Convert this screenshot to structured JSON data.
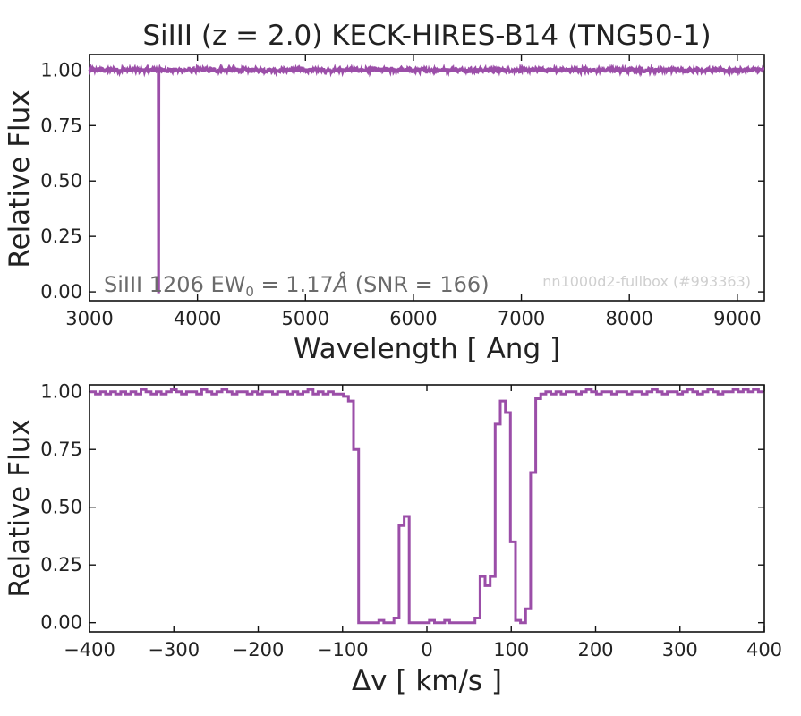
{
  "figure": {
    "title": "SiIII (z = 2.0) KECK-HIRES-B14 (TNG50-1)",
    "line_color": "#9b4ea8"
  },
  "chart_data": [
    {
      "type": "line",
      "title": "SiIII (z = 2.0) KECK-HIRES-B14 (TNG50-1)",
      "xlabel": "Wavelength [ Ang ]",
      "ylabel": "Relative Flux",
      "xlim": [
        3000,
        9250
      ],
      "ylim": [
        -0.04,
        1.07
      ],
      "xticks": [
        3000,
        4000,
        5000,
        6000,
        7000,
        8000,
        9000
      ],
      "yticks": [
        0.0,
        0.25,
        0.5,
        0.75,
        1.0
      ],
      "xtick_labels": [
        "3000",
        "4000",
        "5000",
        "6000",
        "7000",
        "8000",
        "9000"
      ],
      "ytick_labels": [
        "0.00",
        "0.25",
        "0.50",
        "0.75",
        "1.00"
      ],
      "grid": false,
      "annotation_left": {
        "ion": "SiIII 1206 EW",
        "subscript": "0",
        "value": " = 1.17",
        "unit": "Å",
        "snr": " (SNR = 166)"
      },
      "annotation_right": "nn1000d2-fullbox (#993363)",
      "series": [
        {
          "continuum": 1.0,
          "noise_amplitude": 0.01,
          "absorption_x": 3640,
          "absorption_min": 0.0,
          "points": [
            [
              3000,
              1.0
            ],
            [
              3636,
              1.0
            ],
            [
              3638,
              0.0
            ],
            [
              3642,
              0.0
            ],
            [
              3644,
              1.0
            ],
            [
              9250,
              1.0
            ]
          ]
        }
      ]
    },
    {
      "type": "line",
      "title": "",
      "xlabel": "Δv [ km/s ]",
      "ylabel": "Relative Flux",
      "xlim": [
        -400,
        400
      ],
      "ylim": [
        -0.04,
        1.03
      ],
      "xticks": [
        -400,
        -300,
        -200,
        -100,
        0,
        100,
        200,
        300,
        400
      ],
      "yticks": [
        0.0,
        0.25,
        0.5,
        0.75,
        1.0
      ],
      "xtick_labels": [
        "−400",
        "−300",
        "−200",
        "−100",
        "0",
        "100",
        "200",
        "300",
        "400"
      ],
      "ytick_labels": [
        "0.00",
        "0.25",
        "0.50",
        "0.75",
        "1.00"
      ],
      "grid": false,
      "series": [
        {
          "step": true,
          "points": [
            [
              -396,
              1.0
            ],
            [
              -390,
              0.99
            ],
            [
              -384,
              1.0
            ],
            [
              -378,
              0.99
            ],
            [
              -372,
              1.0
            ],
            [
              -366,
              0.99
            ],
            [
              -360,
              1.0
            ],
            [
              -354,
              0.99
            ],
            [
              -348,
              1.0
            ],
            [
              -342,
              0.99
            ],
            [
              -336,
              1.01
            ],
            [
              -330,
              1.0
            ],
            [
              -324,
              0.99
            ],
            [
              -318,
              1.0
            ],
            [
              -312,
              0.99
            ],
            [
              -306,
              1.0
            ],
            [
              -300,
              1.01
            ],
            [
              -294,
              1.0
            ],
            [
              -288,
              0.99
            ],
            [
              -282,
              1.0
            ],
            [
              -276,
              1.0
            ],
            [
              -270,
              0.99
            ],
            [
              -264,
              1.01
            ],
            [
              -258,
              1.0
            ],
            [
              -252,
              0.99
            ],
            [
              -246,
              1.0
            ],
            [
              -240,
              1.01
            ],
            [
              -234,
              1.0
            ],
            [
              -228,
              0.99
            ],
            [
              -222,
              1.0
            ],
            [
              -216,
              1.0
            ],
            [
              -210,
              0.99
            ],
            [
              -204,
              1.0
            ],
            [
              -198,
              0.99
            ],
            [
              -192,
              1.0
            ],
            [
              -186,
              1.0
            ],
            [
              -180,
              0.99
            ],
            [
              -174,
              1.0
            ],
            [
              -168,
              1.0
            ],
            [
              -162,
              0.99
            ],
            [
              -156,
              1.0
            ],
            [
              -150,
              0.99
            ],
            [
              -144,
              1.0
            ],
            [
              -138,
              1.01
            ],
            [
              -132,
              0.99
            ],
            [
              -126,
              1.0
            ],
            [
              -120,
              0.99
            ],
            [
              -114,
              1.0
            ],
            [
              -108,
              0.99
            ],
            [
              -102,
              0.99
            ],
            [
              -96,
              0.98
            ],
            [
              -90,
              0.96
            ],
            [
              -84,
              0.75
            ],
            [
              -78,
              0.0
            ],
            [
              -72,
              0.0
            ],
            [
              -66,
              0.0
            ],
            [
              -60,
              0.0
            ],
            [
              -54,
              0.01
            ],
            [
              -48,
              0.0
            ],
            [
              -42,
              0.0
            ],
            [
              -36,
              0.02
            ],
            [
              -30,
              0.42
            ],
            [
              -24,
              0.46
            ],
            [
              -18,
              0.0
            ],
            [
              -12,
              0.0
            ],
            [
              -6,
              0.0
            ],
            [
              0,
              0.0
            ],
            [
              6,
              0.01
            ],
            [
              12,
              0.0
            ],
            [
              18,
              0.0
            ],
            [
              24,
              0.01
            ],
            [
              30,
              0.0
            ],
            [
              36,
              0.0
            ],
            [
              42,
              0.0
            ],
            [
              48,
              0.0
            ],
            [
              54,
              0.0
            ],
            [
              60,
              0.02
            ],
            [
              66,
              0.2
            ],
            [
              72,
              0.16
            ],
            [
              78,
              0.2
            ],
            [
              84,
              0.86
            ],
            [
              90,
              0.96
            ],
            [
              96,
              0.91
            ],
            [
              102,
              0.35
            ],
            [
              108,
              0.01
            ],
            [
              114,
              0.0
            ],
            [
              120,
              0.06
            ],
            [
              126,
              0.65
            ],
            [
              132,
              0.97
            ],
            [
              138,
              0.99
            ],
            [
              144,
              1.0
            ],
            [
              150,
              0.99
            ],
            [
              156,
              1.0
            ],
            [
              162,
              0.99
            ],
            [
              168,
              1.0
            ],
            [
              174,
              1.0
            ],
            [
              180,
              0.99
            ],
            [
              186,
              1.0
            ],
            [
              192,
              1.01
            ],
            [
              198,
              1.0
            ],
            [
              204,
              0.99
            ],
            [
              210,
              1.0
            ],
            [
              216,
              1.0
            ],
            [
              222,
              0.99
            ],
            [
              228,
              1.0
            ],
            [
              234,
              1.0
            ],
            [
              240,
              0.99
            ],
            [
              246,
              1.0
            ],
            [
              252,
              1.0
            ],
            [
              258,
              0.99
            ],
            [
              264,
              1.0
            ],
            [
              270,
              1.01
            ],
            [
              276,
              1.0
            ],
            [
              282,
              0.99
            ],
            [
              288,
              1.0
            ],
            [
              294,
              1.0
            ],
            [
              300,
              0.99
            ],
            [
              306,
              1.0
            ],
            [
              312,
              1.01
            ],
            [
              318,
              1.0
            ],
            [
              324,
              0.99
            ],
            [
              330,
              1.0
            ],
            [
              336,
              1.01
            ],
            [
              342,
              1.0
            ],
            [
              348,
              0.99
            ],
            [
              354,
              1.0
            ],
            [
              360,
              1.0
            ],
            [
              366,
              1.01
            ],
            [
              372,
              1.0
            ],
            [
              378,
              1.01
            ],
            [
              384,
              1.0
            ],
            [
              390,
              1.01
            ],
            [
              396,
              1.0
            ]
          ]
        }
      ]
    }
  ]
}
